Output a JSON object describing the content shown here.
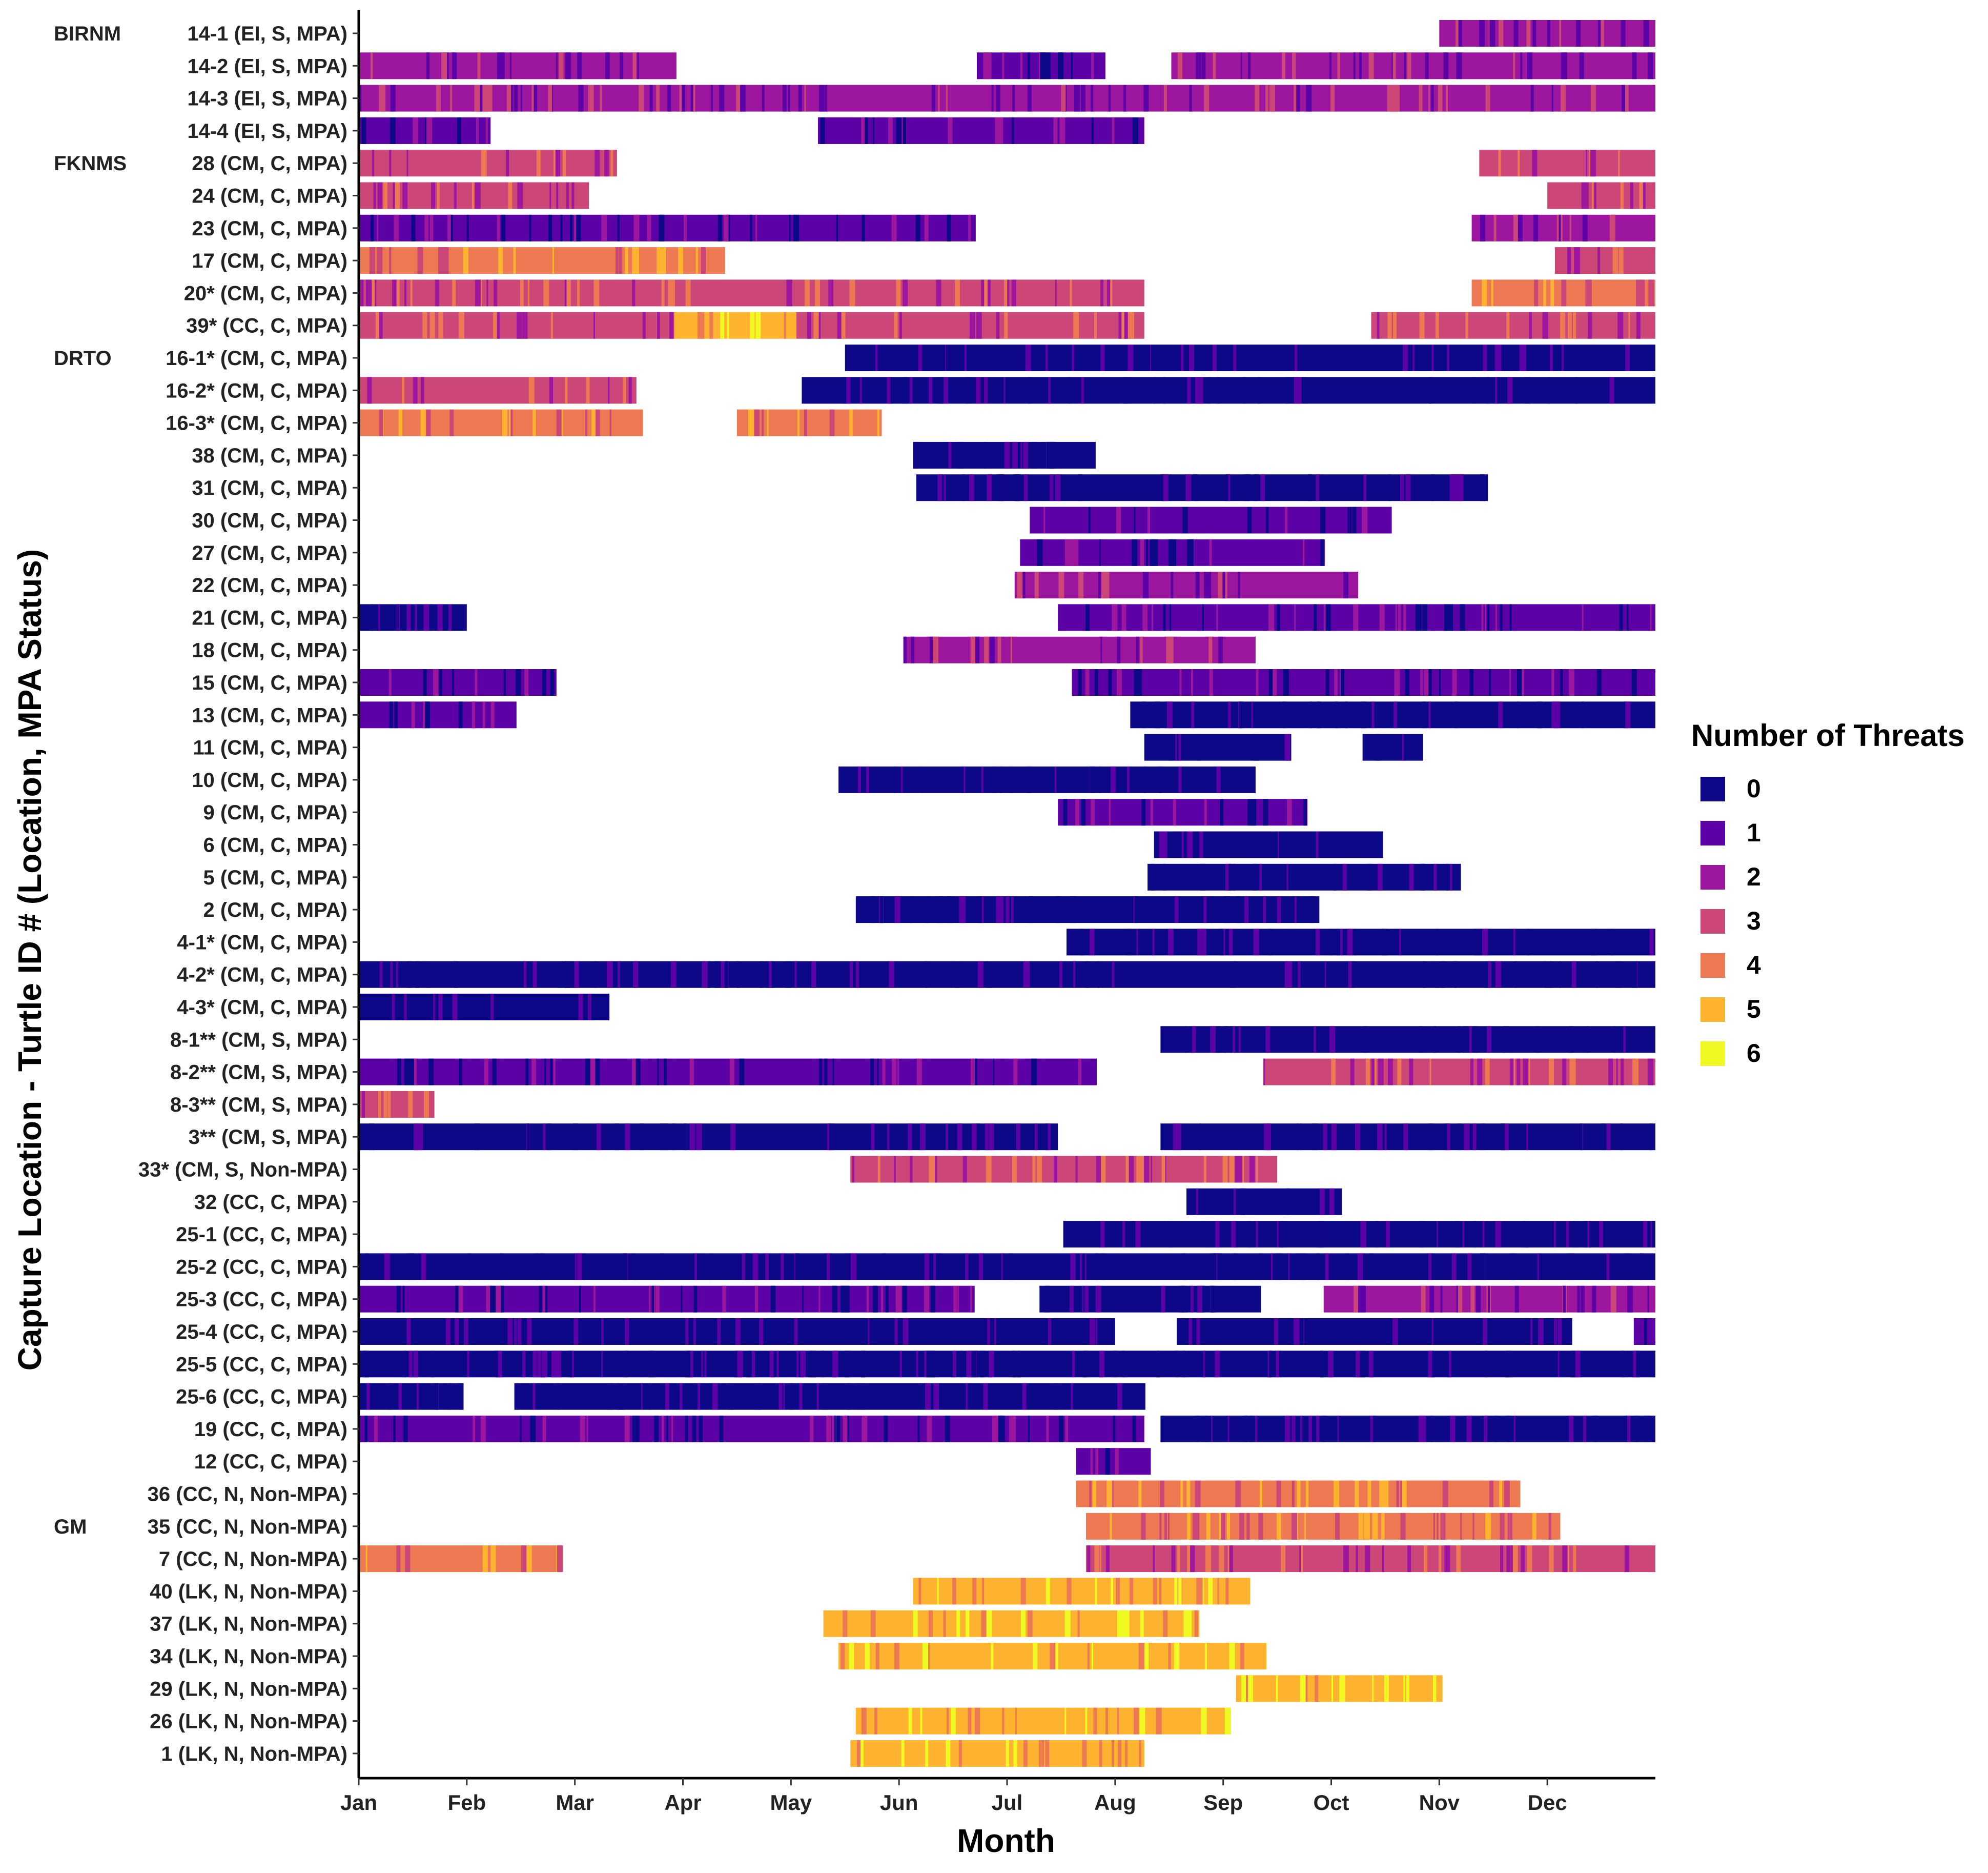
{
  "chart_data": {
    "type": "timeline",
    "title": "",
    "xlabel": "Month",
    "ylabel": "Capture Location - Turtle ID # (Location, MPA Status)",
    "months": [
      "Jan",
      "Feb",
      "Mar",
      "Apr",
      "May",
      "Jun",
      "Jul",
      "Aug",
      "Sep",
      "Oct",
      "Nov",
      "Dec"
    ],
    "xlim": [
      0,
      12
    ],
    "legend": {
      "title": "Number of Threats",
      "placement": "right",
      "entries": [
        {
          "label": "0",
          "color": "#0D0887"
        },
        {
          "label": "1",
          "color": "#5C01A6"
        },
        {
          "label": "2",
          "color": "#9C179E"
        },
        {
          "label": "3",
          "color": "#CC4678"
        },
        {
          "label": "4",
          "color": "#ED7953"
        },
        {
          "label": "5",
          "color": "#FDB32F"
        },
        {
          "label": "6",
          "color": "#F0F921"
        }
      ]
    },
    "groups": [
      {
        "label": "BIRNM",
        "first_row": 0
      },
      {
        "label": "FKNMS",
        "first_row": 4
      },
      {
        "label": "DRTO",
        "first_row": 10
      },
      {
        "label": "GM",
        "first_row": 46
      }
    ],
    "rows": [
      {
        "label": "14-1 (EI, S, MPA)",
        "segments": [
          [
            10.0,
            12.0,
            2
          ]
        ]
      },
      {
        "label": "14-2 (EI, S, MPA)",
        "segments": [
          [
            0.0,
            2.94,
            2
          ],
          [
            5.72,
            6.91,
            1
          ],
          [
            7.52,
            12.0,
            2
          ]
        ]
      },
      {
        "label": "14-3 (EI, S, MPA)",
        "segments": [
          [
            0.0,
            12.0,
            2
          ]
        ]
      },
      {
        "label": "14-4 (EI, S, MPA)",
        "segments": [
          [
            0.0,
            1.22,
            1
          ],
          [
            4.25,
            7.27,
            1
          ]
        ]
      },
      {
        "label": "28 (CM, C, MPA)",
        "segments": [
          [
            0.0,
            2.39,
            3
          ],
          [
            10.37,
            12.0,
            3
          ]
        ]
      },
      {
        "label": "24 (CM, C, MPA)",
        "segments": [
          [
            0.0,
            2.13,
            3
          ],
          [
            11.0,
            12.0,
            3
          ]
        ]
      },
      {
        "label": "23 (CM, C, MPA)",
        "segments": [
          [
            0.0,
            5.71,
            1
          ],
          [
            10.3,
            12.0,
            2
          ]
        ]
      },
      {
        "label": "17 (CM, C, MPA)",
        "segments": [
          [
            0.0,
            3.39,
            4
          ],
          [
            11.07,
            12.0,
            3
          ]
        ]
      },
      {
        "label": "20* (CM, C, MPA)",
        "segments": [
          [
            0.0,
            7.27,
            3
          ],
          [
            10.3,
            12.0,
            4
          ]
        ]
      },
      {
        "label": "39* (CC, C, MPA)",
        "segments": [
          [
            0.0,
            2.92,
            3
          ],
          [
            2.92,
            4.05,
            5
          ],
          [
            4.05,
            7.27,
            3
          ],
          [
            9.37,
            12.0,
            3
          ]
        ]
      },
      {
        "label": "16-1* (CM, C, MPA)",
        "segments": [
          [
            4.5,
            12.0,
            0
          ]
        ]
      },
      {
        "label": "16-2* (CM, C, MPA)",
        "segments": [
          [
            0.0,
            2.57,
            3
          ],
          [
            4.1,
            12.0,
            0
          ]
        ]
      },
      {
        "label": "16-3* (CM, C, MPA)",
        "segments": [
          [
            0.0,
            2.63,
            4
          ],
          [
            3.5,
            4.84,
            4
          ]
        ]
      },
      {
        "label": "38 (CM, C, MPA)",
        "segments": [
          [
            5.13,
            6.82,
            0
          ]
        ]
      },
      {
        "label": "31 (CM, C, MPA)",
        "segments": [
          [
            5.16,
            10.45,
            0
          ]
        ]
      },
      {
        "label": "30 (CM, C, MPA)",
        "segments": [
          [
            6.21,
            9.56,
            1
          ]
        ]
      },
      {
        "label": "27 (CM, C, MPA)",
        "segments": [
          [
            6.12,
            8.94,
            1
          ]
        ]
      },
      {
        "label": "22 (CM, C, MPA)",
        "segments": [
          [
            6.07,
            9.25,
            2
          ]
        ]
      },
      {
        "label": "21 (CM, C, MPA)",
        "segments": [
          [
            0.0,
            1.0,
            0
          ],
          [
            6.47,
            12.0,
            1
          ]
        ]
      },
      {
        "label": "18 (CM, C, MPA)",
        "segments": [
          [
            5.04,
            8.3,
            2
          ]
        ]
      },
      {
        "label": "15 (CM, C, MPA)",
        "segments": [
          [
            0.0,
            1.83,
            1
          ],
          [
            6.6,
            12.0,
            1
          ]
        ]
      },
      {
        "label": "13 (CM, C, MPA)",
        "segments": [
          [
            0.0,
            1.46,
            1
          ],
          [
            7.14,
            12.0,
            0
          ]
        ]
      },
      {
        "label": "11 (CM, C, MPA)",
        "segments": [
          [
            7.27,
            8.63,
            0
          ],
          [
            9.29,
            9.85,
            0
          ]
        ]
      },
      {
        "label": "10 (CM, C, MPA)",
        "segments": [
          [
            4.44,
            8.3,
            0
          ]
        ]
      },
      {
        "label": "9 (CM, C, MPA)",
        "segments": [
          [
            6.47,
            8.78,
            1
          ]
        ]
      },
      {
        "label": "6 (CM, C, MPA)",
        "segments": [
          [
            7.36,
            9.48,
            0
          ]
        ]
      },
      {
        "label": "5 (CM, C, MPA)",
        "segments": [
          [
            7.3,
            10.2,
            0
          ]
        ]
      },
      {
        "label": "2 (CM, C, MPA)",
        "segments": [
          [
            4.6,
            8.89,
            0
          ]
        ]
      },
      {
        "label": "4-1* (CM, C, MPA)",
        "segments": [
          [
            6.55,
            12.0,
            0
          ]
        ]
      },
      {
        "label": "4-2* (CM, C, MPA)",
        "segments": [
          [
            0.0,
            12.0,
            0
          ]
        ]
      },
      {
        "label": "4-3* (CM, C, MPA)",
        "segments": [
          [
            0.0,
            2.32,
            0
          ]
        ]
      },
      {
        "label": "8-1** (CM, S, MPA)",
        "segments": [
          [
            7.42,
            12.0,
            0
          ]
        ]
      },
      {
        "label": "8-2** (CM, S, MPA)",
        "segments": [
          [
            0.0,
            6.83,
            1
          ],
          [
            8.37,
            12.0,
            3
          ]
        ]
      },
      {
        "label": "8-3** (CM, S, MPA)",
        "segments": [
          [
            0.0,
            0.7,
            3
          ]
        ]
      },
      {
        "label": "3** (CM, S, MPA)",
        "segments": [
          [
            0.0,
            6.47,
            0
          ],
          [
            7.42,
            12.0,
            0
          ]
        ]
      },
      {
        "label": "33* (CM, S, Non-MPA)",
        "segments": [
          [
            4.55,
            8.5,
            3
          ]
        ]
      },
      {
        "label": "32 (CC, C, MPA)",
        "segments": [
          [
            7.66,
            9.1,
            0
          ]
        ]
      },
      {
        "label": "25-1 (CC, C, MPA)",
        "segments": [
          [
            6.52,
            12.0,
            0
          ]
        ]
      },
      {
        "label": "25-2 (CC, C, MPA)",
        "segments": [
          [
            0.0,
            12.0,
            0
          ]
        ]
      },
      {
        "label": "25-3 (CC, C, MPA)",
        "segments": [
          [
            0.0,
            5.7,
            1
          ],
          [
            6.3,
            8.35,
            0
          ],
          [
            8.93,
            12.0,
            2
          ]
        ]
      },
      {
        "label": "25-4 (CC, C, MPA)",
        "segments": [
          [
            0.0,
            7.0,
            0
          ],
          [
            7.57,
            11.23,
            0
          ],
          [
            11.8,
            12.0,
            1
          ]
        ]
      },
      {
        "label": "25-5 (CC, C, MPA)",
        "segments": [
          [
            0.0,
            12.0,
            0
          ]
        ]
      },
      {
        "label": "25-6 (CC, C, MPA)",
        "segments": [
          [
            0.0,
            0.97,
            0
          ],
          [
            1.44,
            7.28,
            0
          ]
        ]
      },
      {
        "label": "19 (CC, C, MPA)",
        "segments": [
          [
            0.0,
            7.27,
            1
          ],
          [
            7.42,
            12.0,
            0
          ]
        ]
      },
      {
        "label": "12 (CC, C, MPA)",
        "segments": [
          [
            6.64,
            7.33,
            1
          ]
        ]
      },
      {
        "label": "36 (CC, N, Non-MPA)",
        "segments": [
          [
            6.64,
            10.75,
            4
          ]
        ]
      },
      {
        "label": "35 (CC, N, Non-MPA)",
        "segments": [
          [
            6.73,
            11.12,
            4
          ]
        ]
      },
      {
        "label": "7 (CC, N, Non-MPA)",
        "segments": [
          [
            0.0,
            1.89,
            4
          ],
          [
            6.73,
            12.0,
            3
          ]
        ]
      },
      {
        "label": "40 (LK, N, Non-MPA)",
        "segments": [
          [
            5.13,
            8.25,
            5
          ]
        ]
      },
      {
        "label": "37 (LK, N, Non-MPA)",
        "segments": [
          [
            4.3,
            7.78,
            5
          ]
        ]
      },
      {
        "label": "34 (LK, N, Non-MPA)",
        "segments": [
          [
            4.44,
            8.4,
            5
          ]
        ]
      },
      {
        "label": "29 (LK, N, Non-MPA)",
        "segments": [
          [
            8.12,
            10.03,
            5
          ]
        ]
      },
      {
        "label": "26 (LK, N, Non-MPA)",
        "segments": [
          [
            4.6,
            8.07,
            5
          ]
        ]
      },
      {
        "label": "1 (LK, N, Non-MPA)",
        "segments": [
          [
            4.55,
            7.27,
            5
          ]
        ]
      }
    ]
  }
}
